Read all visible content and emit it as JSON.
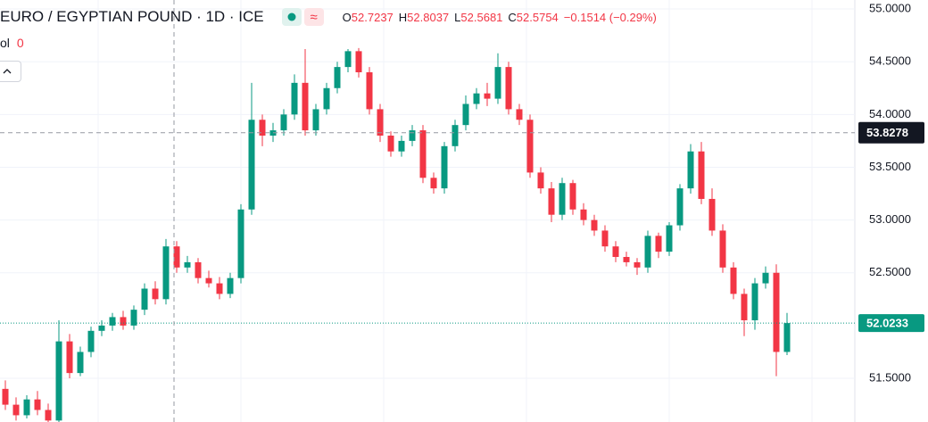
{
  "chart_data": {
    "type": "candlestick",
    "title": "EURO / EGYPTIAN POUND · 1D · ICE",
    "legend": {
      "o_key": "O",
      "o": "52.7237",
      "h_key": "H",
      "h": "52.8037",
      "l_key": "L",
      "l": "52.5681",
      "c_key": "C",
      "c": "52.5754",
      "change": "−0.1514 (−0.29%)"
    },
    "volume_label": "ol",
    "volume_value": "0",
    "open": [
      51.4,
      51.25,
      51.15,
      51.3,
      51.2,
      51.1,
      51.85,
      51.55,
      51.75,
      51.95,
      52.0,
      52.08,
      52.0,
      52.15,
      52.35,
      52.25,
      52.75,
      52.55,
      52.6,
      52.45,
      52.4,
      52.3,
      52.45,
      53.1,
      53.95,
      53.8,
      53.85,
      54.0,
      54.3,
      53.85,
      54.05,
      54.25,
      54.45,
      54.6,
      54.4,
      54.05,
      53.8,
      53.65,
      53.75,
      53.85,
      53.4,
      53.3,
      53.7,
      53.9,
      54.1,
      54.2,
      54.15,
      54.45,
      54.05,
      53.95,
      53.45,
      53.3,
      53.05,
      53.35,
      53.1,
      53.0,
      52.9,
      52.75,
      52.65,
      52.6,
      52.55,
      52.85,
      52.7,
      52.95,
      53.3,
      53.65,
      53.2,
      52.9,
      52.55,
      52.3,
      52.05,
      52.4,
      52.5,
      51.75
    ],
    "high": [
      51.48,
      51.32,
      51.34,
      51.38,
      51.26,
      52.05,
      51.92,
      51.8,
      51.99,
      52.05,
      52.12,
      52.14,
      52.19,
      52.4,
      52.42,
      52.82,
      52.8,
      52.66,
      52.64,
      52.52,
      52.46,
      52.5,
      53.15,
      54.3,
      54.0,
      53.92,
      54.05,
      54.38,
      54.62,
      54.1,
      54.3,
      54.5,
      54.62,
      54.63,
      54.45,
      54.1,
      53.84,
      53.8,
      53.9,
      53.9,
      53.45,
      53.74,
      53.95,
      54.18,
      54.25,
      54.3,
      54.58,
      54.5,
      54.1,
      54.0,
      53.5,
      53.36,
      53.4,
      53.38,
      53.16,
      53.05,
      52.95,
      52.8,
      52.7,
      52.64,
      52.9,
      52.88,
      52.98,
      53.34,
      53.72,
      53.74,
      53.3,
      52.96,
      52.6,
      52.35,
      52.45,
      52.56,
      52.58,
      52.12
    ],
    "low": [
      51.2,
      51.1,
      51.12,
      51.15,
      51.08,
      51.08,
      51.5,
      51.52,
      51.7,
      51.9,
      51.95,
      51.96,
      51.96,
      52.1,
      52.2,
      52.2,
      52.5,
      52.5,
      52.4,
      52.36,
      52.25,
      52.26,
      52.4,
      53.05,
      53.7,
      53.74,
      53.8,
      53.95,
      53.8,
      53.8,
      54.0,
      54.2,
      54.4,
      54.35,
      54.0,
      53.74,
      53.6,
      53.6,
      53.7,
      53.35,
      53.25,
      53.25,
      53.65,
      53.85,
      54.05,
      54.08,
      54.1,
      54.0,
      53.9,
      53.4,
      53.25,
      52.98,
      53.0,
      53.05,
      52.95,
      52.85,
      52.7,
      52.6,
      52.56,
      52.48,
      52.5,
      52.64,
      52.66,
      52.9,
      53.25,
      53.15,
      52.85,
      52.5,
      52.25,
      51.9,
      51.96,
      52.35,
      51.52,
      51.72
    ],
    "close": [
      51.25,
      51.15,
      51.3,
      51.2,
      51.1,
      51.85,
      51.55,
      51.75,
      51.95,
      52.0,
      52.08,
      52.0,
      52.15,
      52.35,
      52.25,
      52.75,
      52.55,
      52.6,
      52.45,
      52.4,
      52.3,
      52.45,
      53.1,
      53.95,
      53.8,
      53.85,
      54.0,
      54.3,
      53.85,
      54.05,
      54.25,
      54.45,
      54.6,
      54.4,
      54.05,
      53.8,
      53.65,
      53.75,
      53.85,
      53.4,
      53.3,
      53.7,
      53.9,
      54.1,
      54.2,
      54.15,
      54.45,
      54.05,
      53.95,
      53.45,
      53.3,
      53.05,
      53.35,
      53.1,
      53.0,
      52.9,
      52.75,
      52.65,
      52.6,
      52.55,
      52.85,
      52.7,
      52.95,
      53.3,
      53.65,
      53.2,
      52.9,
      52.55,
      52.3,
      52.05,
      52.4,
      52.5,
      51.75,
      52.0233
    ],
    "up_color": "#089981",
    "down_color": "#f23645",
    "ylim": [
      51.086,
      55.085
    ],
    "yticks": [
      {
        "value": 55,
        "label": "55.0000"
      },
      {
        "value": 54.5,
        "label": "54.5000"
      },
      {
        "value": 54,
        "label": "54.0000"
      },
      {
        "value": 53.5,
        "label": "53.5000"
      },
      {
        "value": 53,
        "label": "53.0000"
      },
      {
        "value": 52.5,
        "label": "52.5000"
      },
      {
        "value": 51.5,
        "label": "51.5000"
      }
    ],
    "crosshair_price": {
      "value": 53.8278,
      "label": "53.8278"
    },
    "grid": true
  }
}
